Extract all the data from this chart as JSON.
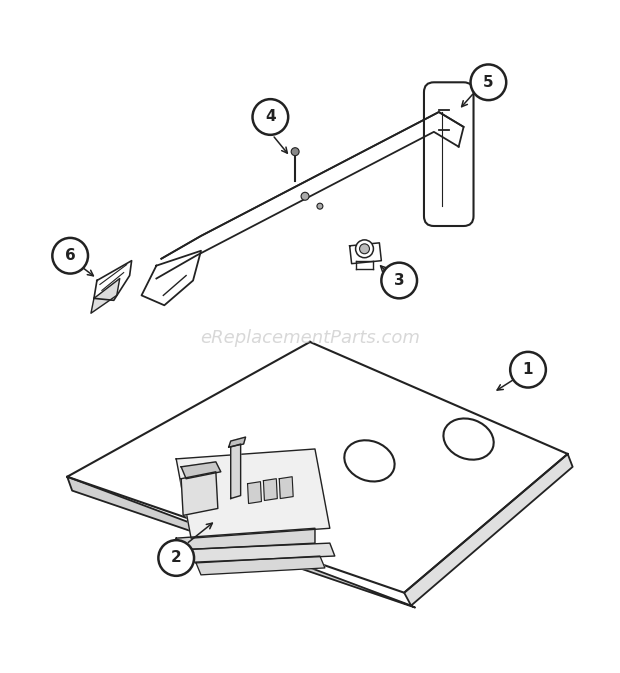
{
  "bg_color": "#ffffff",
  "watermark_text": "eReplacementParts.com",
  "watermark_color": "#c8c8c8",
  "watermark_fontsize": 13,
  "circle_color": "#000000",
  "circle_fill": "#ffffff",
  "circle_lw": 1.8,
  "label_fontsize": 11,
  "line_color": "#222222",
  "line_color_light": "#555555"
}
